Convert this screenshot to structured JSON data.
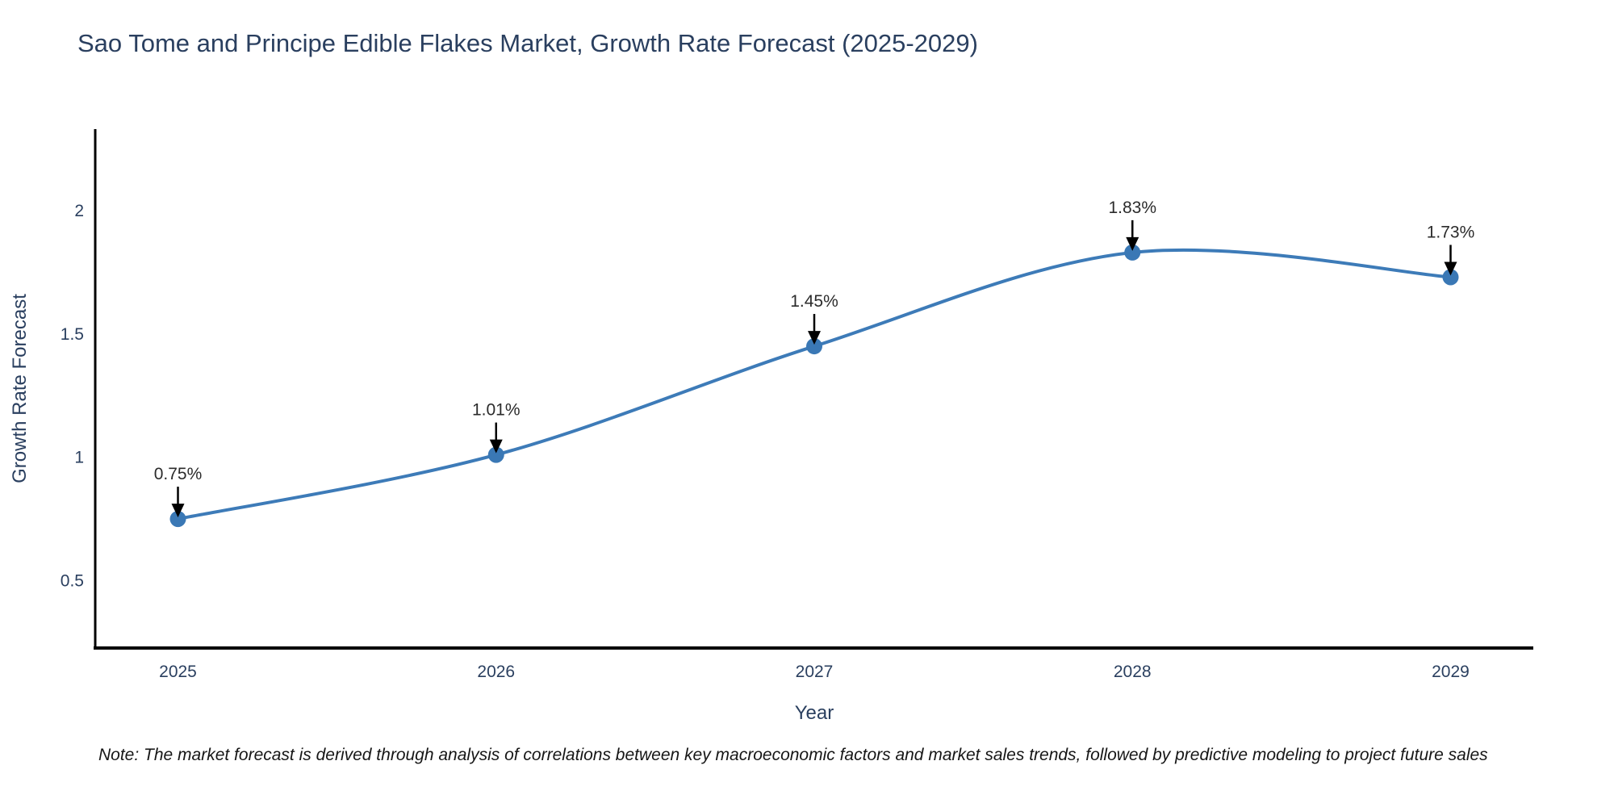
{
  "title": "Sao Tome and Principe Edible Flakes Market, Growth Rate Forecast (2025-2029)",
  "note": "Note: The market forecast is derived through analysis of correlations between key macroeconomic factors and market sales trends, followed by predictive modeling to project future sales",
  "chart_data": {
    "type": "line",
    "title": "Sao Tome and Principe Edible Flakes Market, Growth Rate Forecast (2025-2029)",
    "x": [
      2025,
      2026,
      2027,
      2028,
      2029
    ],
    "values": [
      0.75,
      1.01,
      1.45,
      1.83,
      1.73
    ],
    "annotations": [
      "0.75%",
      "1.01%",
      "1.45%",
      "1.83%",
      "1.73%"
    ],
    "xlabel": "Year",
    "ylabel": "Growth Rate Forecast",
    "yticks": [
      0.5,
      1,
      1.5,
      2
    ],
    "xticks": [
      2025,
      2026,
      2027,
      2028,
      2029
    ],
    "ylim": [
      0.227,
      2.33
    ],
    "xlim": [
      2024.74,
      2029.26
    ],
    "line_shape": "spline",
    "grid": false,
    "legend": "none",
    "line_color": "#3d7bb8",
    "marker_color": "#3a78b5",
    "axis_color": "#000000",
    "annotation_arrow_color": "#000000",
    "title_color": "#2a3f5f",
    "tick_color": "#2a3f5f"
  }
}
